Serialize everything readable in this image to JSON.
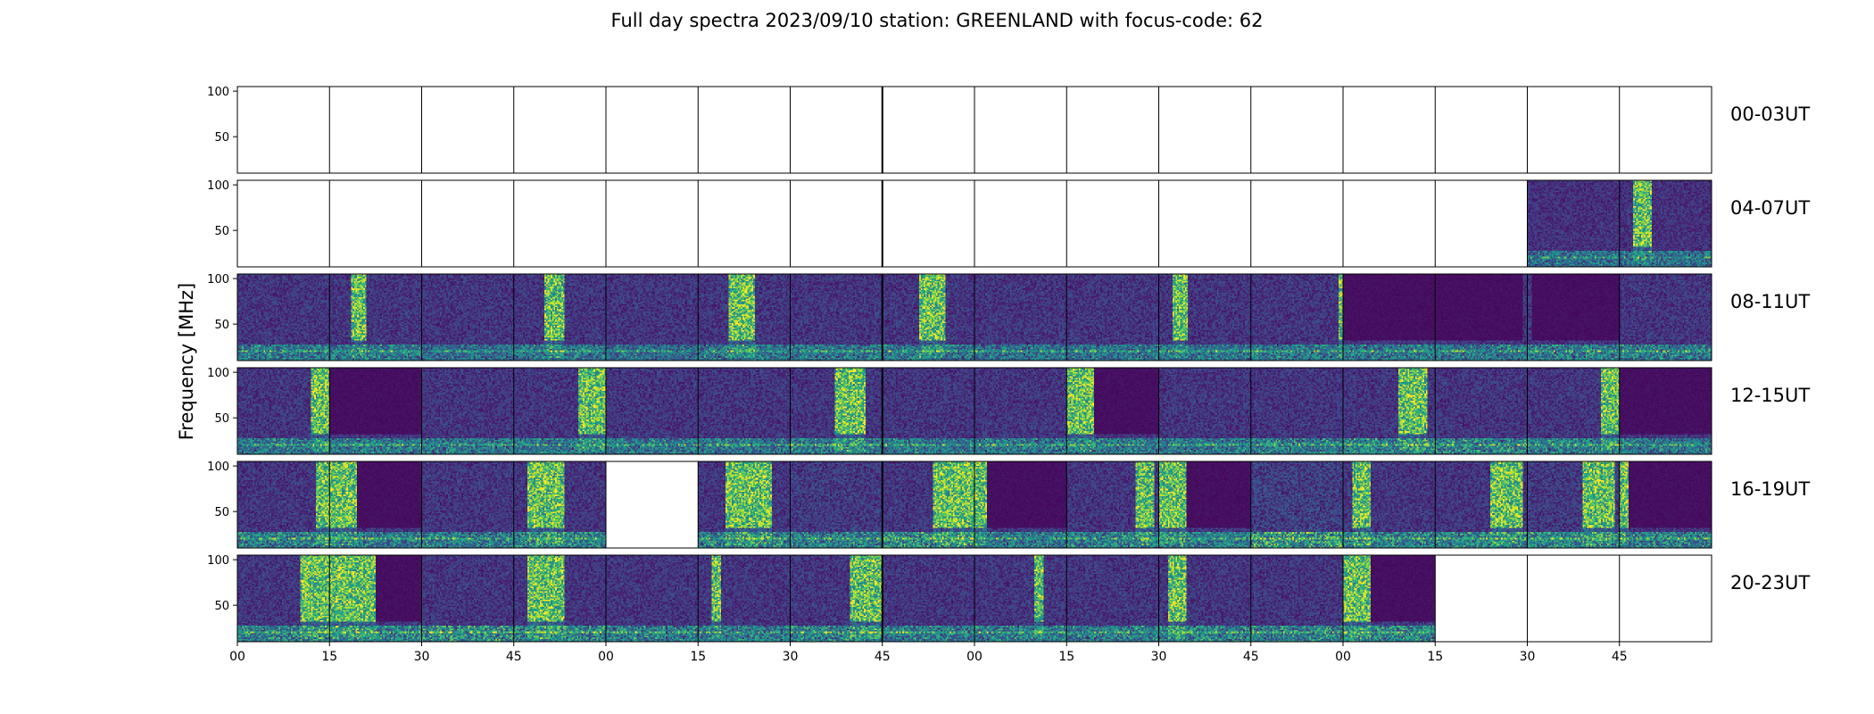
{
  "chart_data": {
    "type": "heatmap",
    "title": "Full day spectra 2023/09/10 station: GREENLAND with focus-code: 62",
    "ylabel": "Frequency [MHz]",
    "xlabel": "",
    "ylim": [
      10,
      105
    ],
    "y_ticks": [
      50,
      100
    ],
    "x_ticks": [
      "00",
      "15",
      "30",
      "45",
      "00",
      "15",
      "30",
      "45",
      "00",
      "15",
      "30",
      "45",
      "00",
      "15",
      "30",
      "45"
    ],
    "colormap": "viridis",
    "grid": false,
    "rows": [
      {
        "label": "00-03UT",
        "panels": [
          {
            "status": "empty"
          },
          {
            "status": "empty"
          },
          {
            "status": "empty"
          },
          {
            "status": "empty"
          },
          {
            "status": "empty"
          },
          {
            "status": "empty"
          },
          {
            "status": "empty"
          },
          {
            "status": "empty"
          },
          {
            "status": "empty"
          },
          {
            "status": "empty"
          },
          {
            "status": "empty"
          },
          {
            "status": "empty"
          },
          {
            "status": "empty"
          },
          {
            "status": "empty"
          },
          {
            "status": "empty"
          },
          {
            "status": "empty"
          }
        ]
      },
      {
        "label": "04-07UT",
        "panels": [
          {
            "status": "empty"
          },
          {
            "status": "empty"
          },
          {
            "status": "empty"
          },
          {
            "status": "empty"
          },
          {
            "status": "empty"
          },
          {
            "status": "empty"
          },
          {
            "status": "empty"
          },
          {
            "status": "empty"
          },
          {
            "status": "empty"
          },
          {
            "status": "empty"
          },
          {
            "status": "empty"
          },
          {
            "status": "empty"
          },
          {
            "status": "empty"
          },
          {
            "status": "empty"
          },
          {
            "status": "data",
            "burst": null,
            "noise": 0.3,
            "low_band": 0.55
          },
          {
            "status": "data",
            "burst": [
              0.15,
              0.35
            ],
            "noise": 0.3,
            "low_band": 0.55
          }
        ]
      },
      {
        "label": "08-11UT",
        "panels": [
          {
            "status": "data",
            "burst": null,
            "noise": 0.35,
            "low_band": 0.6
          },
          {
            "status": "data",
            "burst": [
              0.23,
              0.4
            ],
            "noise": 0.35,
            "low_band": 0.6
          },
          {
            "status": "data",
            "burst": null,
            "noise": 0.35,
            "low_band": 0.5
          },
          {
            "status": "data",
            "burst": [
              0.33,
              0.55
            ],
            "noise": 0.35,
            "low_band": 0.6
          },
          {
            "status": "data",
            "burst": null,
            "noise": 0.35,
            "low_band": 0.5
          },
          {
            "status": "data",
            "burst": [
              0.33,
              0.62
            ],
            "noise": 0.35,
            "low_band": 0.6
          },
          {
            "status": "data",
            "burst": null,
            "noise": 0.35,
            "low_band": 0.6
          },
          {
            "status": "data",
            "burst": [
              0.4,
              0.68
            ],
            "noise": 0.35,
            "low_band": 0.6
          },
          {
            "status": "data",
            "burst": null,
            "noise": 0.35,
            "low_band": 0.55
          },
          {
            "status": "data",
            "burst": null,
            "noise": 0.35,
            "low_band": 0.55
          },
          {
            "status": "data",
            "burst": [
              0.15,
              0.32
            ],
            "noise": 0.35,
            "low_band": 0.55
          },
          {
            "status": "data",
            "burst": [
              0.95,
              1.0
            ],
            "noise": 0.35,
            "low_band": 0.6
          },
          {
            "status": "data",
            "burst": null,
            "noise": 0.35,
            "low_band": 0.6,
            "dark_block": [
              0.0,
              1.0
            ]
          },
          {
            "status": "data",
            "burst": null,
            "noise": 0.35,
            "low_band": 0.6,
            "dark_block": [
              0.0,
              0.95
            ]
          },
          {
            "status": "data",
            "burst": null,
            "noise": 0.35,
            "low_band": 0.65,
            "dark_block": [
              0.05,
              1.0
            ]
          },
          {
            "status": "data",
            "burst": null,
            "noise": 0.35,
            "low_band": 0.65
          }
        ]
      },
      {
        "label": "12-15UT",
        "panels": [
          {
            "status": "data",
            "burst": [
              0.8,
              1.0
            ],
            "noise": 0.35,
            "low_band": 0.6
          },
          {
            "status": "data",
            "burst": null,
            "noise": 0.35,
            "low_band": 0.6,
            "dark_block": [
              0.0,
              1.0
            ]
          },
          {
            "status": "data",
            "burst": null,
            "noise": 0.35,
            "low_band": 0.6
          },
          {
            "status": "data",
            "burst": [
              0.7,
              1.0
            ],
            "noise": 0.35,
            "low_band": 0.6
          },
          {
            "status": "data",
            "burst": null,
            "noise": 0.35,
            "low_band": 0.6
          },
          {
            "status": "data",
            "burst": null,
            "noise": 0.35,
            "low_band": 0.6
          },
          {
            "status": "data",
            "burst": [
              0.48,
              0.82
            ],
            "noise": 0.35,
            "low_band": 0.65
          },
          {
            "status": "data",
            "burst": null,
            "noise": 0.35,
            "low_band": 0.6
          },
          {
            "status": "data",
            "burst": null,
            "noise": 0.35,
            "low_band": 0.6
          },
          {
            "status": "data",
            "burst": [
              0.0,
              0.3
            ],
            "noise": 0.35,
            "low_band": 0.6,
            "dark_block": [
              0.3,
              1.0
            ]
          },
          {
            "status": "data",
            "burst": null,
            "noise": 0.35,
            "low_band": 0.6
          },
          {
            "status": "data",
            "burst": null,
            "noise": 0.35,
            "low_band": 0.65
          },
          {
            "status": "data",
            "burst": [
              0.6,
              0.92
            ],
            "noise": 0.35,
            "low_band": 0.7
          },
          {
            "status": "data",
            "burst": null,
            "noise": 0.35,
            "low_band": 0.7
          },
          {
            "status": "data",
            "burst": [
              0.8,
              1.0
            ],
            "noise": 0.35,
            "low_band": 0.65
          },
          {
            "status": "data",
            "burst": null,
            "noise": 0.35,
            "low_band": 0.6,
            "dark_block": [
              0.0,
              1.0
            ]
          }
        ]
      },
      {
        "label": "16-19UT",
        "panels": [
          {
            "status": "data",
            "burst": [
              0.85,
              1.0
            ],
            "noise": 0.35,
            "low_band": 0.7
          },
          {
            "status": "data",
            "burst": [
              0.0,
              0.3
            ],
            "noise": 0.35,
            "low_band": 0.65,
            "dark_block": [
              0.3,
              1.0
            ]
          },
          {
            "status": "data",
            "burst": null,
            "noise": 0.35,
            "low_band": 0.65
          },
          {
            "status": "data",
            "burst": [
              0.15,
              0.55
            ],
            "noise": 0.35,
            "low_band": 0.7
          },
          {
            "status": "empty"
          },
          {
            "status": "data",
            "burst": [
              0.3,
              0.8
            ],
            "noise": 0.35,
            "low_band": 0.7
          },
          {
            "status": "data",
            "burst": null,
            "noise": 0.4,
            "low_band": 0.65
          },
          {
            "status": "data",
            "burst": [
              0.55,
              1.0
            ],
            "noise": 0.35,
            "low_band": 0.8
          },
          {
            "status": "data",
            "burst": [
              0.0,
              0.12
            ],
            "noise": 0.35,
            "low_band": 0.6,
            "dark_block": [
              0.12,
              1.0
            ]
          },
          {
            "status": "data",
            "burst": [
              0.75,
              0.95
            ],
            "noise": 0.35,
            "low_band": 0.65
          },
          {
            "status": "data",
            "burst": [
              0.0,
              0.3
            ],
            "noise": 0.35,
            "low_band": 0.65,
            "dark_block": [
              0.3,
              1.0
            ]
          },
          {
            "status": "data",
            "burst": null,
            "noise": 0.45,
            "low_band": 0.85
          },
          {
            "status": "data",
            "burst": [
              0.1,
              0.3
            ],
            "noise": 0.35,
            "low_band": 0.7
          },
          {
            "status": "data",
            "burst": [
              0.6,
              0.95
            ],
            "noise": 0.35,
            "low_band": 0.7
          },
          {
            "status": "data",
            "burst": [
              0.6,
              0.95
            ],
            "noise": 0.4,
            "low_band": 0.7
          },
          {
            "status": "data",
            "burst": [
              0.0,
              0.1
            ],
            "noise": 0.35,
            "low_band": 0.7,
            "dark_block": [
              0.1,
              1.0
            ]
          }
        ]
      },
      {
        "label": "20-23UT",
        "panels": [
          {
            "status": "data",
            "burst": [
              0.68,
              1.0
            ],
            "noise": 0.35,
            "low_band": 0.7
          },
          {
            "status": "data",
            "burst": [
              0.0,
              0.5
            ],
            "noise": 0.4,
            "low_band": 0.65,
            "dark_block": [
              0.5,
              1.0
            ]
          },
          {
            "status": "data",
            "burst": null,
            "noise": 0.35,
            "low_band": 0.8
          },
          {
            "status": "data",
            "burst": [
              0.15,
              0.55
            ],
            "noise": 0.35,
            "low_band": 0.7
          },
          {
            "status": "data",
            "burst": null,
            "noise": 0.35,
            "low_band": 0.65
          },
          {
            "status": "data",
            "burst": [
              0.15,
              0.25
            ],
            "noise": 0.35,
            "low_band": 0.65
          },
          {
            "status": "data",
            "burst": [
              0.65,
              1.0
            ],
            "noise": 0.35,
            "low_band": 0.7
          },
          {
            "status": "data",
            "burst": null,
            "noise": 0.35,
            "low_band": 0.65
          },
          {
            "status": "data",
            "burst": [
              0.65,
              0.75
            ],
            "noise": 0.35,
            "low_band": 0.65
          },
          {
            "status": "data",
            "burst": null,
            "noise": 0.35,
            "low_band": 0.65
          },
          {
            "status": "data",
            "burst": [
              0.1,
              0.3
            ],
            "noise": 0.35,
            "low_band": 0.7
          },
          {
            "status": "data",
            "burst": null,
            "noise": 0.35,
            "low_band": 0.7
          },
          {
            "status": "data",
            "burst": [
              0.0,
              0.3
            ],
            "noise": 0.4,
            "low_band": 0.7,
            "dark_block": [
              0.3,
              1.0
            ]
          },
          {
            "status": "empty"
          },
          {
            "status": "empty"
          },
          {
            "status": "empty"
          }
        ]
      }
    ]
  }
}
